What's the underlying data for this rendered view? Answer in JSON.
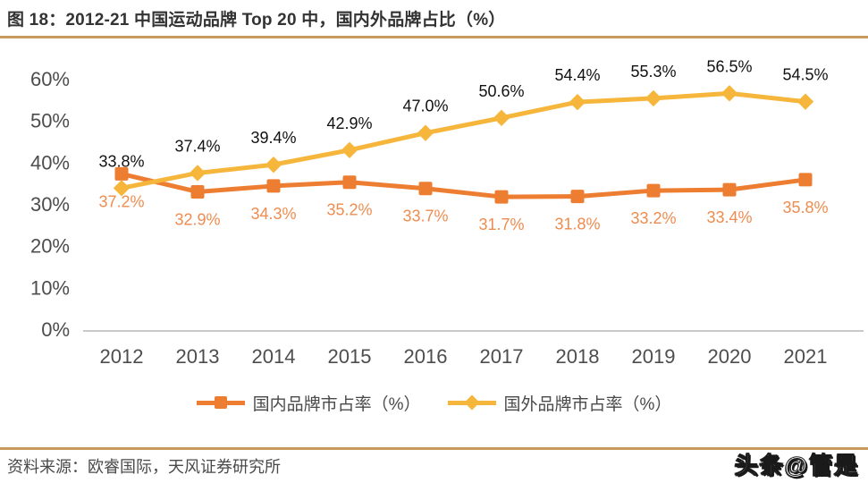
{
  "header": {
    "title": "图 18：2012-21 中国运动品牌 Top 20 中，国内外品牌占比（%）"
  },
  "footer": {
    "source": "资料来源：欧睿国际，天风证券研究所",
    "watermark": "头条@管是"
  },
  "colors": {
    "domestic": "#ED7D31",
    "foreign": "#F6B63B",
    "domestic_label": "#EE8C4F",
    "foreign_label": "#111111",
    "axis_text": "#4D4D4D",
    "axis_line": "#C9C9C9",
    "separator": "#C79B5D",
    "title_text": "#333333"
  },
  "chart_data": {
    "type": "line",
    "title": "图 18：2012-21 中国运动品牌 Top 20 中，国内外品牌占比（%）",
    "xlabel": "",
    "ylabel": "",
    "categories": [
      "2012",
      "2013",
      "2014",
      "2015",
      "2016",
      "2017",
      "2018",
      "2019",
      "2020",
      "2021"
    ],
    "series": [
      {
        "name": "国内品牌市占率（%）",
        "marker": "square",
        "color": "#ED7D31",
        "label_color": "#EE8C4F",
        "label_position": "below",
        "values": [
          37.2,
          32.9,
          34.3,
          35.2,
          33.7,
          31.7,
          31.8,
          33.2,
          33.4,
          35.8
        ]
      },
      {
        "name": "国外品牌市占率（%）",
        "marker": "diamond",
        "color": "#F6B63B",
        "label_color": "#111111",
        "label_position": "above",
        "values": [
          33.8,
          37.4,
          39.4,
          42.9,
          47.0,
          50.6,
          54.4,
          55.3,
          56.5,
          54.5
        ]
      }
    ],
    "yticks": [
      0,
      10,
      20,
      30,
      40,
      50,
      60
    ],
    "ytick_suffix": "%",
    "ylim": [
      0,
      65
    ],
    "grid": false,
    "legend_position": "bottom"
  }
}
